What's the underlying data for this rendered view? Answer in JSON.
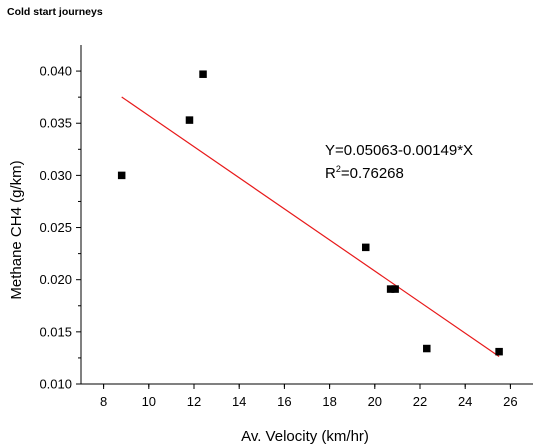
{
  "title": "Cold start journeys",
  "chart_data": {
    "type": "scatter",
    "title": "Cold start journeys",
    "xlabel": "Av. Velocity (km/hr)",
    "ylabel": "Methane CH4 (g/km)",
    "xlim": [
      7,
      27
    ],
    "ylim": [
      0.01,
      0.0425
    ],
    "xticks": [
      8,
      10,
      12,
      14,
      16,
      18,
      20,
      22,
      24,
      26
    ],
    "yticks": [
      0.01,
      0.015,
      0.02,
      0.025,
      0.03,
      0.035,
      0.04
    ],
    "grid": false,
    "points": [
      {
        "x": 8.8,
        "y": 0.03
      },
      {
        "x": 11.8,
        "y": 0.0353
      },
      {
        "x": 12.4,
        "y": 0.0397
      },
      {
        "x": 19.6,
        "y": 0.0231
      },
      {
        "x": 20.7,
        "y": 0.0191
      },
      {
        "x": 20.9,
        "y": 0.0191
      },
      {
        "x": 22.3,
        "y": 0.0134
      },
      {
        "x": 25.5,
        "y": 0.0131
      }
    ],
    "fit": {
      "intercept": 0.05063,
      "slope": -0.00149,
      "x_range": [
        8.8,
        25.5
      ],
      "color": "#e8191a"
    },
    "annotation": {
      "equation": "Y=0.05063-0.00149*X",
      "r2_prefix": "R",
      "r2_sup": "2",
      "r2_value": "=0.76268"
    }
  }
}
